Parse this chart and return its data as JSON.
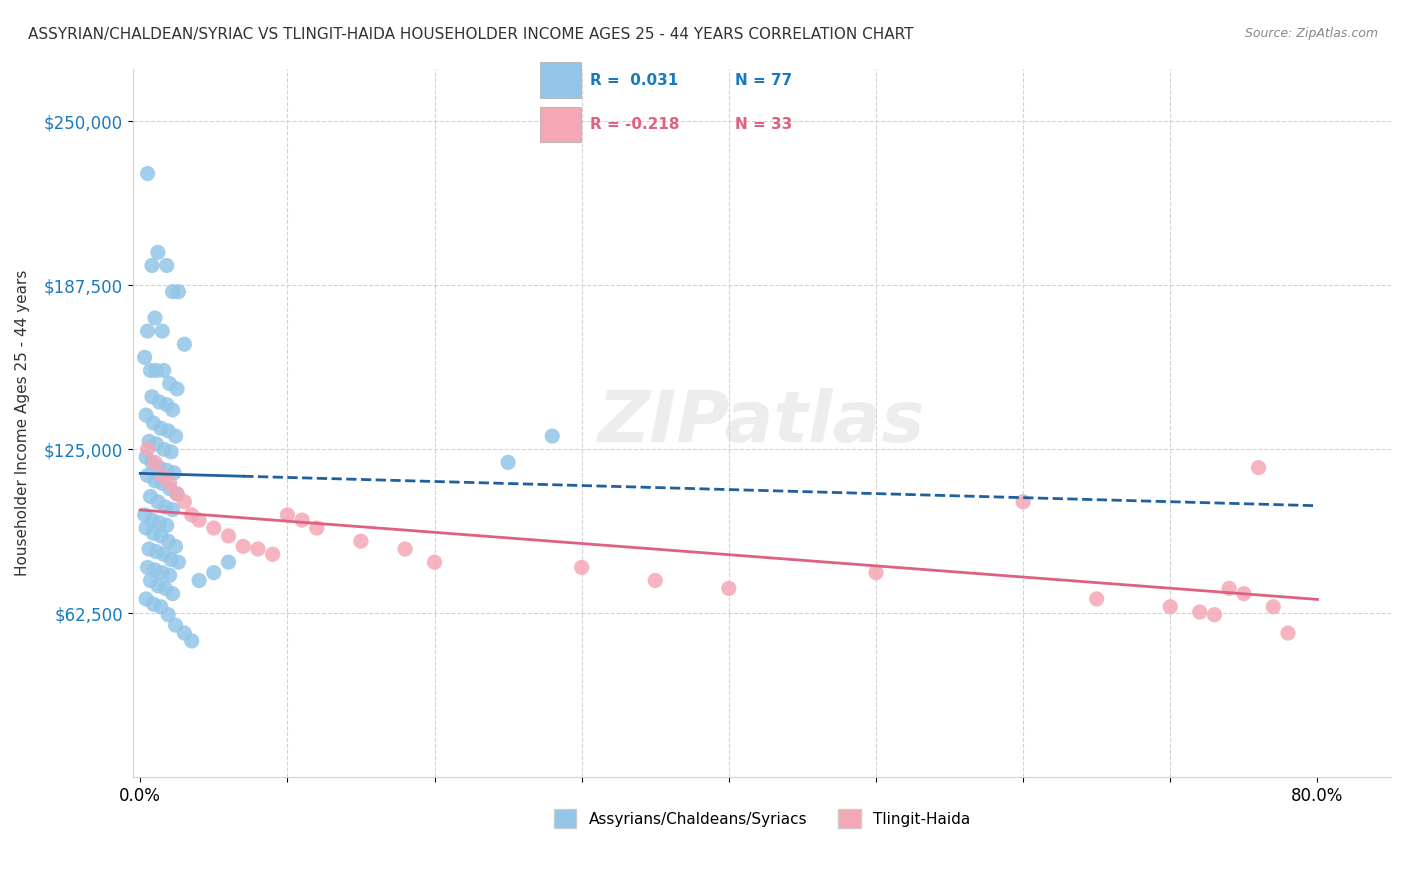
{
  "title": "ASSYRIAN/CHALDEAN/SYRIAC VS TLINGIT-HAIDA HOUSEHOLDER INCOME AGES 25 - 44 YEARS CORRELATION CHART",
  "source": "Source: ZipAtlas.com",
  "ylabel": "Householder Income Ages 25 - 44 years",
  "xlabel_ticks": [
    "0.0%",
    "80.0%"
  ],
  "ytick_labels": [
    "$62,500",
    "$125,000",
    "$187,500",
    "$250,000"
  ],
  "ytick_values": [
    62500,
    125000,
    187500,
    250000
  ],
  "ymin": 0,
  "ymax": 270000,
  "xmin": -0.005,
  "xmax": 0.85,
  "legend_blue_r": "0.031",
  "legend_blue_n": "77",
  "legend_pink_r": "-0.218",
  "legend_pink_n": "33",
  "blue_color": "#92C5E8",
  "pink_color": "#F4A7B4",
  "blue_line_color": "#2060A0",
  "pink_line_color": "#E06080",
  "watermark": "ZIPatlas",
  "blue_points_x": [
    0.005,
    0.008,
    0.012,
    0.018,
    0.022,
    0.026,
    0.03,
    0.005,
    0.01,
    0.015,
    0.003,
    0.007,
    0.011,
    0.016,
    0.02,
    0.025,
    0.008,
    0.013,
    0.018,
    0.022,
    0.004,
    0.009,
    0.014,
    0.019,
    0.024,
    0.006,
    0.011,
    0.016,
    0.021,
    0.004,
    0.008,
    0.013,
    0.018,
    0.023,
    0.005,
    0.01,
    0.015,
    0.02,
    0.025,
    0.007,
    0.012,
    0.017,
    0.022,
    0.003,
    0.008,
    0.013,
    0.018,
    0.004,
    0.009,
    0.014,
    0.019,
    0.024,
    0.006,
    0.011,
    0.016,
    0.021,
    0.026,
    0.005,
    0.01,
    0.015,
    0.02,
    0.007,
    0.012,
    0.017,
    0.022,
    0.004,
    0.009,
    0.014,
    0.019,
    0.024,
    0.03,
    0.035,
    0.04,
    0.05,
    0.06,
    0.25,
    0.28
  ],
  "blue_points_y": [
    230000,
    195000,
    200000,
    195000,
    185000,
    185000,
    165000,
    170000,
    175000,
    170000,
    160000,
    155000,
    155000,
    155000,
    150000,
    148000,
    145000,
    143000,
    142000,
    140000,
    138000,
    135000,
    133000,
    132000,
    130000,
    128000,
    127000,
    125000,
    124000,
    122000,
    120000,
    118000,
    117000,
    116000,
    115000,
    113000,
    112000,
    110000,
    108000,
    107000,
    105000,
    103000,
    102000,
    100000,
    98000,
    97000,
    96000,
    95000,
    93000,
    92000,
    90000,
    88000,
    87000,
    86000,
    85000,
    83000,
    82000,
    80000,
    79000,
    78000,
    77000,
    75000,
    73000,
    72000,
    70000,
    68000,
    66000,
    65000,
    62000,
    58000,
    55000,
    52000,
    75000,
    78000,
    82000,
    120000,
    130000
  ],
  "pink_points_x": [
    0.005,
    0.01,
    0.015,
    0.02,
    0.025,
    0.03,
    0.035,
    0.04,
    0.05,
    0.06,
    0.07,
    0.08,
    0.09,
    0.1,
    0.11,
    0.12,
    0.15,
    0.18,
    0.2,
    0.3,
    0.35,
    0.4,
    0.5,
    0.6,
    0.65,
    0.7,
    0.72,
    0.73,
    0.74,
    0.75,
    0.76,
    0.77,
    0.78
  ],
  "pink_points_y": [
    125000,
    120000,
    115000,
    112000,
    108000,
    105000,
    100000,
    98000,
    95000,
    92000,
    88000,
    87000,
    85000,
    100000,
    98000,
    95000,
    90000,
    87000,
    82000,
    80000,
    75000,
    72000,
    78000,
    105000,
    68000,
    65000,
    63000,
    62000,
    72000,
    70000,
    118000,
    65000,
    55000
  ]
}
